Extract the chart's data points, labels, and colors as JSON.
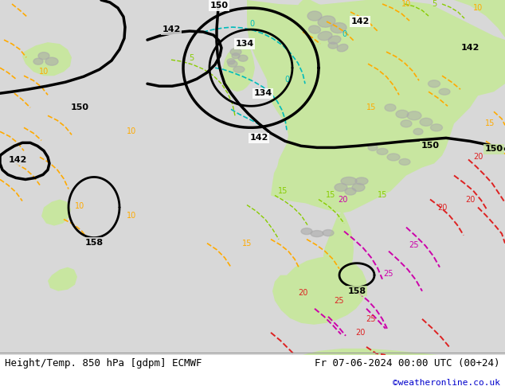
{
  "title_left": "Height/Temp. 850 hPa [gdpm] ECMWF",
  "title_right": "Fr 07-06-2024 00:00 UTC (00+24)",
  "credit": "©weatheronline.co.uk",
  "credit_color": "#0000cc",
  "title_color": "#000000",
  "bg_color": "#ffffff",
  "fig_width": 6.34,
  "fig_height": 4.9,
  "dpi": 100,
  "footer_fontsize": 9,
  "map_bg_gray": "#d8d8d8",
  "map_bg_green": "#c8e6a0",
  "color_height": "#000000",
  "color_temp0": "#00bbbb",
  "color_temp5": "#88cc00",
  "color_temp10": "#ffaa00",
  "color_temp15": "#ffaa00",
  "color_temp20_red": "#dd2222",
  "color_temp20_pink": "#cc00aa",
  "color_temp25": "#cc00aa",
  "color_gray_terrain": "#aaaaaa"
}
